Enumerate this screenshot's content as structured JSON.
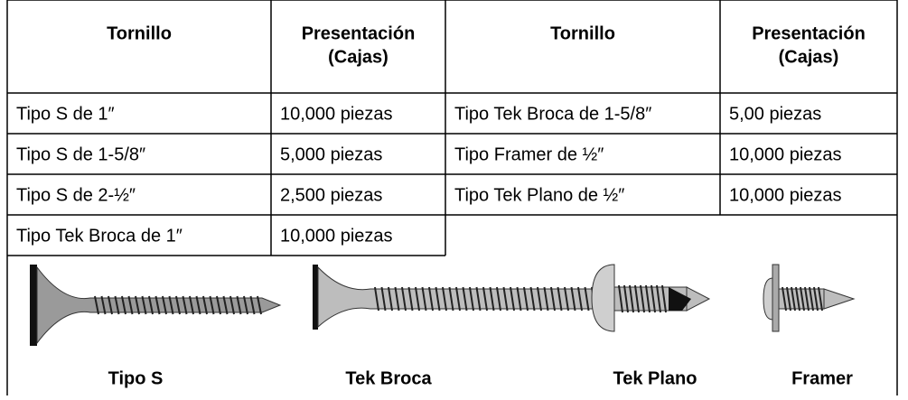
{
  "table": {
    "header": [
      [
        "Tornillo"
      ],
      [
        "Presentación",
        "(Cajas)"
      ],
      [
        "Tornillo"
      ],
      [
        "Presentación",
        "(Cajas)"
      ]
    ],
    "rows": [
      [
        "Tipo S de 1″",
        "10,000 piezas",
        "Tipo Tek Broca de 1-5/8″",
        "5,00 piezas"
      ],
      [
        "Tipo S de 1-5/8″",
        "5,000 piezas",
        "Tipo Framer de ½″",
        "10,000 piezas"
      ],
      [
        "Tipo S de 2-½″",
        "2,500 piezas",
        "Tipo Tek Plano de ½″",
        "10,000 piezas"
      ],
      [
        "Tipo Tek Broca de 1″",
        "10,000 piezas"
      ]
    ]
  },
  "images": {
    "labels": [
      "Tipo S",
      "Tek Broca",
      "Tek Plano",
      "Framer"
    ]
  }
}
